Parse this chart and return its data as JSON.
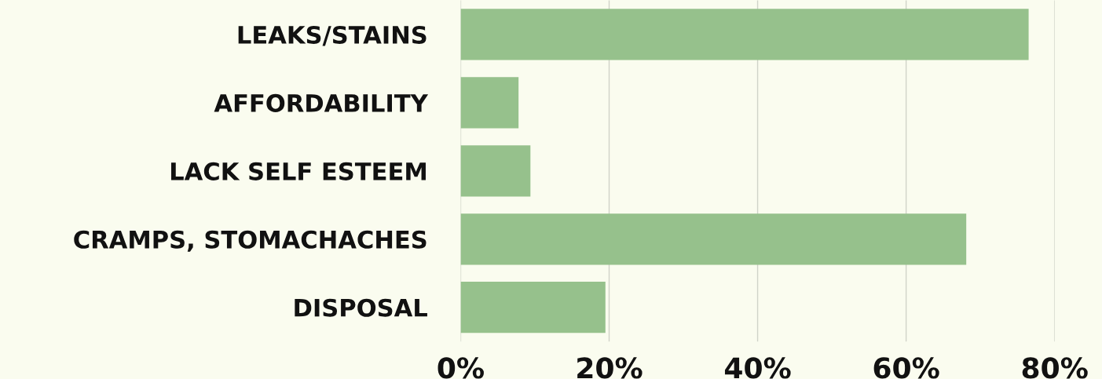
{
  "chart_data": {
    "type": "bar",
    "orientation": "horizontal",
    "categories": [
      "LEAKS/STAINS",
      "AFFORDABILITY",
      "LACK SELF ESTEEM",
      "CRAMPS, STOMACHACHES",
      "DISPOSAL"
    ],
    "values": [
      76.5,
      7.8,
      9.4,
      68.1,
      19.5
    ],
    "color": "#96c18c",
    "xlim": [
      0,
      80
    ],
    "xticks": [
      {
        "value": 0,
        "label": "0%"
      },
      {
        "value": 20,
        "label": "20%"
      },
      {
        "value": 40,
        "label": "40%"
      },
      {
        "value": 60,
        "label": "60%"
      },
      {
        "value": 80,
        "label": "80%"
      }
    ],
    "grid": "x"
  }
}
